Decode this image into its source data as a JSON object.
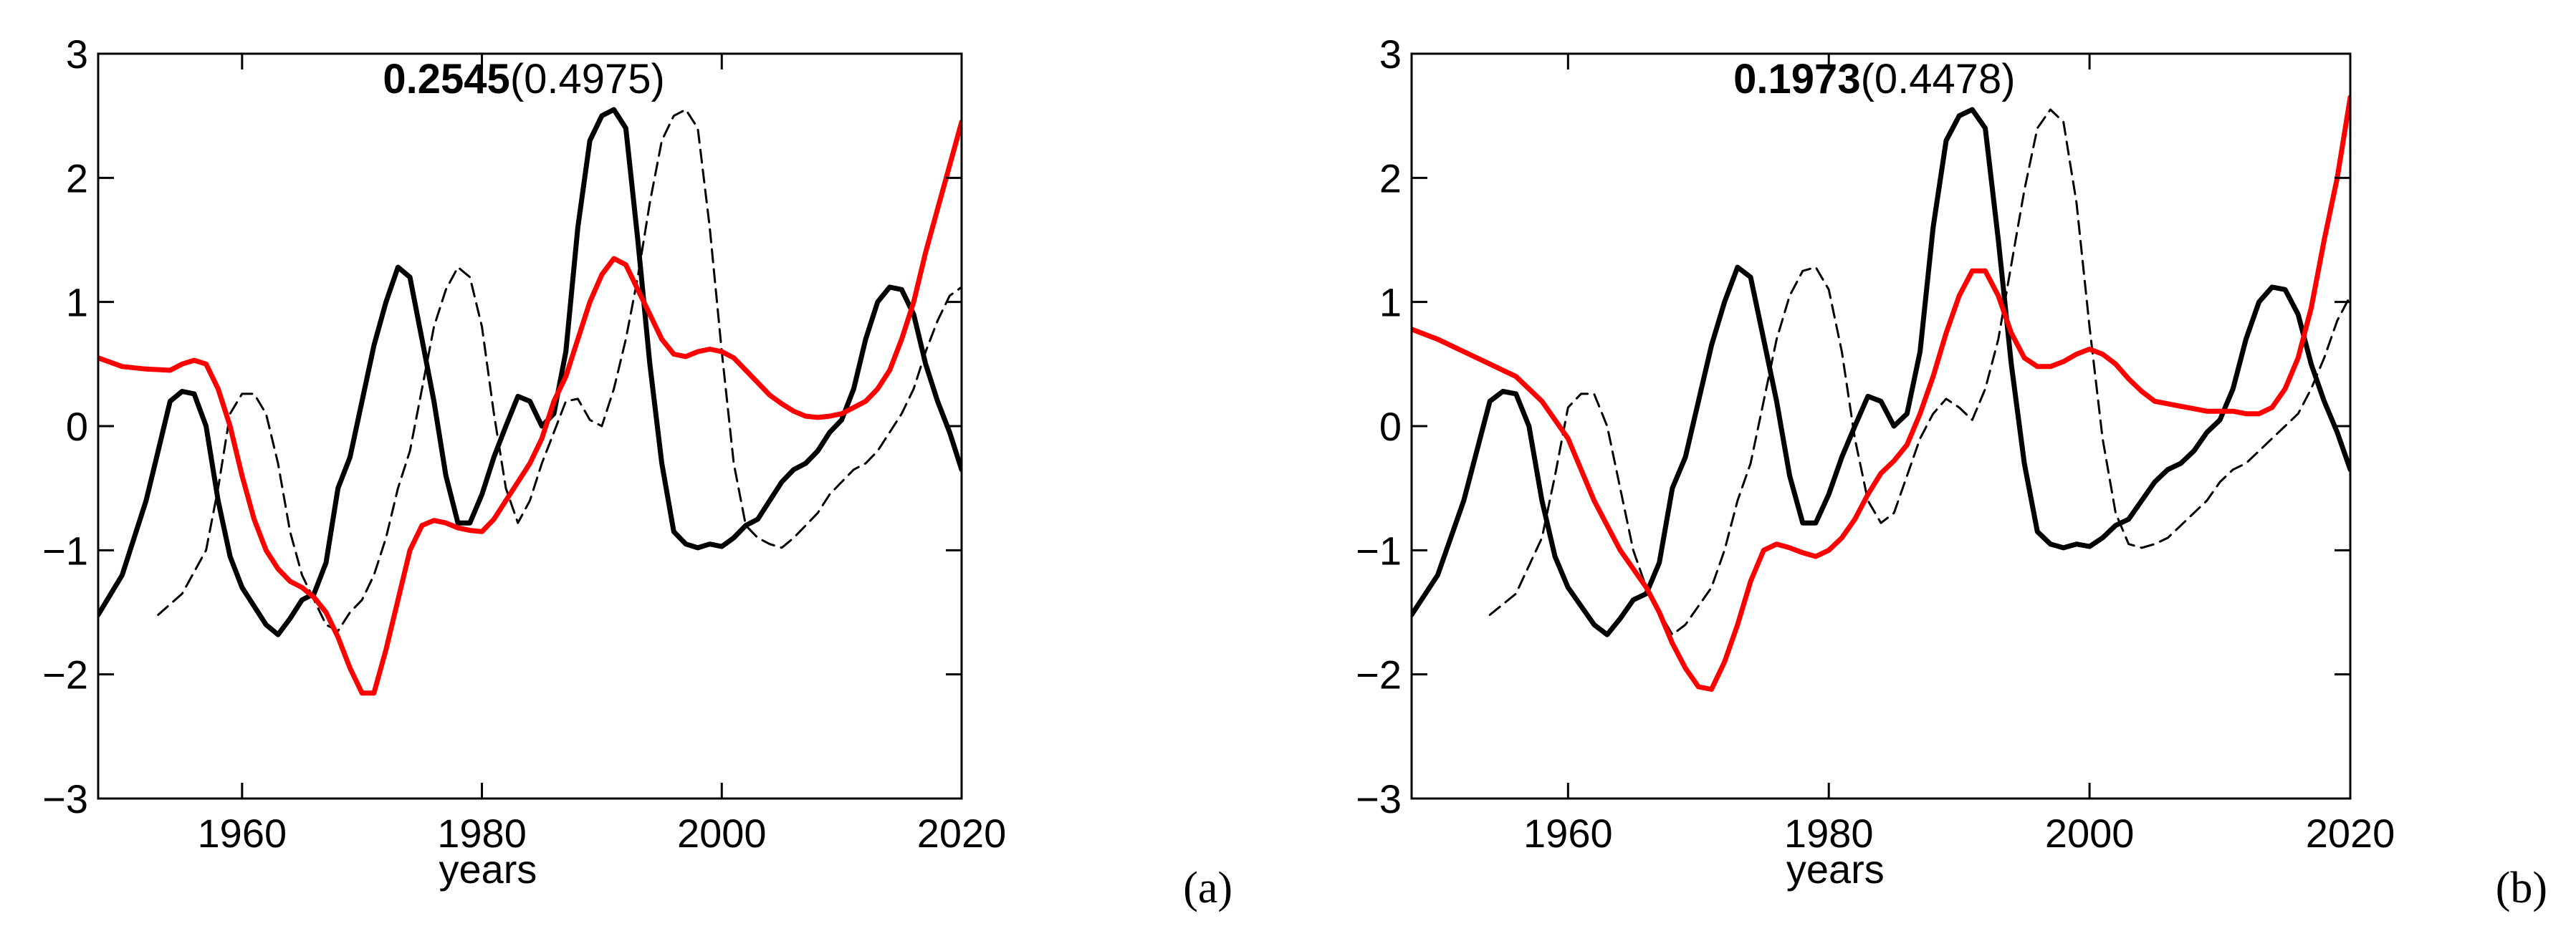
{
  "figure": {
    "panel_labels": [
      "(a)",
      "(b)"
    ]
  },
  "chart_data": [
    {
      "type": "line",
      "panel": "a",
      "title_bold": "0.2545",
      "title_normal": "(0.4975)",
      "xlabel": "years",
      "ylabel": "",
      "xlim": [
        1948,
        2020
      ],
      "ylim": [
        -3,
        3
      ],
      "xticks": [
        1960,
        1980,
        2000,
        2020
      ],
      "yticks": [
        -3,
        -2,
        -1,
        0,
        1,
        2,
        3
      ],
      "grid": false,
      "series": [
        {
          "name": "black-solid",
          "color": "#000000",
          "style": "solid",
          "x": [
            1948,
            1950,
            1952,
            1953,
            1954,
            1955,
            1956,
            1957,
            1958,
            1959,
            1960,
            1962,
            1963,
            1964,
            1965,
            1966,
            1967,
            1968,
            1969,
            1970,
            1971,
            1972,
            1973,
            1974,
            1975,
            1976,
            1977,
            1978,
            1979,
            1980,
            1981,
            1982,
            1983,
            1984,
            1985,
            1986,
            1987,
            1988,
            1989,
            1990,
            1991,
            1992,
            1993,
            1994,
            1995,
            1996,
            1997,
            1998,
            1999,
            2000,
            2001,
            2002,
            2003,
            2004,
            2005,
            2006,
            2007,
            2008,
            2009,
            2010,
            2011,
            2012,
            2013,
            2014,
            2015,
            2016,
            2017,
            2018,
            2019,
            2020
          ],
          "y": [
            -1.52,
            -1.2,
            -0.6,
            -0.2,
            0.2,
            0.28,
            0.26,
            0.0,
            -0.6,
            -1.05,
            -1.3,
            -1.6,
            -1.68,
            -1.55,
            -1.4,
            -1.35,
            -1.1,
            -0.5,
            -0.25,
            0.2,
            0.65,
            1.0,
            1.28,
            1.2,
            0.7,
            0.2,
            -0.4,
            -0.78,
            -0.78,
            -0.55,
            -0.25,
            0.0,
            0.24,
            0.2,
            0.0,
            0.1,
            0.6,
            1.6,
            2.3,
            2.5,
            2.55,
            2.4,
            1.5,
            0.5,
            -0.3,
            -0.85,
            -0.95,
            -0.98,
            -0.95,
            -0.97,
            -0.9,
            -0.8,
            -0.75,
            -0.6,
            -0.45,
            -0.35,
            -0.3,
            -0.2,
            -0.05,
            0.05,
            0.3,
            0.7,
            1.0,
            1.12,
            1.1,
            0.9,
            0.5,
            0.2,
            -0.05,
            -0.35
          ]
        },
        {
          "name": "black-dashed",
          "color": "#000000",
          "style": "dashed",
          "x": [
            1953,
            1955,
            1957,
            1958,
            1959,
            1960,
            1961,
            1962,
            1963,
            1964,
            1965,
            1966,
            1967,
            1968,
            1969,
            1970,
            1971,
            1972,
            1973,
            1974,
            1975,
            1976,
            1977,
            1978,
            1979,
            1980,
            1981,
            1982,
            1983,
            1984,
            1985,
            1986,
            1987,
            1988,
            1989,
            1990,
            1991,
            1992,
            1993,
            1994,
            1995,
            1996,
            1997,
            1998,
            1999,
            2000,
            2001,
            2002,
            2003,
            2004,
            2005,
            2006,
            2007,
            2008,
            2009,
            2010,
            2011,
            2012,
            2013,
            2014,
            2015,
            2016,
            2017,
            2018,
            2019,
            2020
          ],
          "y": [
            -1.52,
            -1.35,
            -1.0,
            -0.5,
            0.1,
            0.26,
            0.26,
            0.1,
            -0.3,
            -0.85,
            -1.2,
            -1.4,
            -1.6,
            -1.65,
            -1.5,
            -1.4,
            -1.2,
            -0.9,
            -0.5,
            -0.2,
            0.3,
            0.8,
            1.1,
            1.28,
            1.2,
            0.8,
            0.1,
            -0.5,
            -0.78,
            -0.6,
            -0.3,
            -0.05,
            0.2,
            0.22,
            0.05,
            0.0,
            0.3,
            0.7,
            1.2,
            1.8,
            2.3,
            2.5,
            2.55,
            2.4,
            1.6,
            0.6,
            -0.3,
            -0.8,
            -0.9,
            -0.95,
            -0.98,
            -0.9,
            -0.8,
            -0.7,
            -0.55,
            -0.45,
            -0.35,
            -0.3,
            -0.2,
            -0.05,
            0.1,
            0.3,
            0.6,
            0.85,
            1.05,
            1.12
          ]
        },
        {
          "name": "red",
          "color": "#ff0000",
          "style": "solid",
          "x": [
            1948,
            1950,
            1952,
            1954,
            1955,
            1956,
            1957,
            1958,
            1959,
            1960,
            1961,
            1962,
            1963,
            1964,
            1965,
            1966,
            1967,
            1968,
            1969,
            1970,
            1971,
            1972,
            1973,
            1974,
            1975,
            1976,
            1977,
            1978,
            1979,
            1980,
            1981,
            1982,
            1983,
            1984,
            1985,
            1986,
            1987,
            1988,
            1989,
            1990,
            1991,
            1992,
            1993,
            1994,
            1995,
            1996,
            1997,
            1998,
            1999,
            2000,
            2001,
            2002,
            2003,
            2004,
            2005,
            2006,
            2007,
            2008,
            2009,
            2010,
            2011,
            2012,
            2013,
            2014,
            2015,
            2016,
            2017,
            2018,
            2019,
            2020
          ],
          "y": [
            0.55,
            0.48,
            0.46,
            0.45,
            0.5,
            0.53,
            0.5,
            0.3,
            0.0,
            -0.4,
            -0.75,
            -1.0,
            -1.15,
            -1.25,
            -1.3,
            -1.38,
            -1.5,
            -1.7,
            -1.95,
            -2.15,
            -2.15,
            -1.8,
            -1.4,
            -1.0,
            -0.8,
            -0.76,
            -0.78,
            -0.82,
            -0.84,
            -0.85,
            -0.75,
            -0.6,
            -0.45,
            -0.3,
            -0.1,
            0.2,
            0.4,
            0.7,
            1.0,
            1.22,
            1.35,
            1.3,
            1.1,
            0.9,
            0.7,
            0.58,
            0.56,
            0.6,
            0.62,
            0.6,
            0.55,
            0.45,
            0.35,
            0.25,
            0.18,
            0.12,
            0.08,
            0.07,
            0.08,
            0.1,
            0.15,
            0.2,
            0.3,
            0.45,
            0.7,
            1.0,
            1.4,
            1.75,
            2.1,
            2.45
          ]
        }
      ]
    },
    {
      "type": "line",
      "panel": "b",
      "title_bold": "0.1973",
      "title_normal": "(0.4478)",
      "xlabel": "years",
      "ylabel": "",
      "xlim": [
        1948,
        2020
      ],
      "ylim": [
        -3,
        3
      ],
      "xticks": [
        1960,
        1980,
        2000,
        2020
      ],
      "yticks": [
        -3,
        -2,
        -1,
        0,
        1,
        2,
        3
      ],
      "grid": false,
      "series": [
        {
          "name": "black-solid",
          "color": "#000000",
          "style": "solid",
          "x": [
            1948,
            1950,
            1952,
            1953,
            1954,
            1955,
            1956,
            1957,
            1958,
            1959,
            1960,
            1962,
            1963,
            1964,
            1965,
            1966,
            1967,
            1968,
            1969,
            1970,
            1971,
            1972,
            1973,
            1974,
            1975,
            1976,
            1977,
            1978,
            1979,
            1980,
            1981,
            1982,
            1983,
            1984,
            1985,
            1986,
            1987,
            1988,
            1989,
            1990,
            1991,
            1992,
            1993,
            1994,
            1995,
            1996,
            1997,
            1998,
            1999,
            2000,
            2001,
            2002,
            2003,
            2004,
            2005,
            2006,
            2007,
            2008,
            2009,
            2010,
            2011,
            2012,
            2013,
            2014,
            2015,
            2016,
            2017,
            2018,
            2019,
            2020
          ],
          "y": [
            -1.52,
            -1.2,
            -0.6,
            -0.2,
            0.2,
            0.28,
            0.26,
            0.0,
            -0.6,
            -1.05,
            -1.3,
            -1.6,
            -1.68,
            -1.55,
            -1.4,
            -1.35,
            -1.1,
            -0.5,
            -0.25,
            0.2,
            0.65,
            1.0,
            1.28,
            1.2,
            0.7,
            0.2,
            -0.4,
            -0.78,
            -0.78,
            -0.55,
            -0.25,
            0.0,
            0.24,
            0.2,
            0.0,
            0.1,
            0.6,
            1.6,
            2.3,
            2.5,
            2.55,
            2.4,
            1.5,
            0.5,
            -0.3,
            -0.85,
            -0.95,
            -0.98,
            -0.95,
            -0.97,
            -0.9,
            -0.8,
            -0.75,
            -0.6,
            -0.45,
            -0.35,
            -0.3,
            -0.2,
            -0.05,
            0.05,
            0.3,
            0.7,
            1.0,
            1.12,
            1.1,
            0.9,
            0.5,
            0.2,
            -0.05,
            -0.35
          ]
        },
        {
          "name": "black-dashed",
          "color": "#000000",
          "style": "dashed",
          "x": [
            1954,
            1956,
            1958,
            1959,
            1960,
            1961,
            1962,
            1963,
            1964,
            1965,
            1966,
            1967,
            1968,
            1969,
            1970,
            1971,
            1972,
            1973,
            1974,
            1975,
            1976,
            1977,
            1978,
            1979,
            1980,
            1981,
            1982,
            1983,
            1984,
            1985,
            1986,
            1987,
            1988,
            1989,
            1990,
            1991,
            1992,
            1993,
            1994,
            1995,
            1996,
            1997,
            1998,
            1999,
            2000,
            2001,
            2002,
            2003,
            2004,
            2005,
            2006,
            2007,
            2008,
            2009,
            2010,
            2011,
            2012,
            2013,
            2014,
            2015,
            2016,
            2017,
            2018,
            2019,
            2020
          ],
          "y": [
            -1.52,
            -1.35,
            -0.9,
            -0.4,
            0.15,
            0.26,
            0.26,
            0.0,
            -0.5,
            -1.0,
            -1.3,
            -1.5,
            -1.68,
            -1.6,
            -1.45,
            -1.3,
            -1.0,
            -0.6,
            -0.3,
            0.2,
            0.7,
            1.05,
            1.25,
            1.28,
            1.1,
            0.6,
            -0.1,
            -0.6,
            -0.78,
            -0.7,
            -0.4,
            -0.1,
            0.1,
            0.22,
            0.15,
            0.05,
            0.3,
            0.7,
            1.3,
            1.9,
            2.4,
            2.55,
            2.45,
            1.8,
            0.8,
            -0.1,
            -0.7,
            -0.95,
            -0.98,
            -0.95,
            -0.9,
            -0.8,
            -0.7,
            -0.6,
            -0.45,
            -0.35,
            -0.3,
            -0.2,
            -0.1,
            0.0,
            0.1,
            0.3,
            0.55,
            0.85,
            1.05
          ]
        },
        {
          "name": "red",
          "color": "#ff0000",
          "style": "solid",
          "x": [
            1948,
            1950,
            1952,
            1954,
            1956,
            1958,
            1960,
            1961,
            1962,
            1963,
            1964,
            1965,
            1966,
            1967,
            1968,
            1969,
            1970,
            1971,
            1972,
            1973,
            1974,
            1975,
            1976,
            1977,
            1978,
            1979,
            1980,
            1981,
            1982,
            1983,
            1984,
            1985,
            1986,
            1987,
            1988,
            1989,
            1990,
            1991,
            1992,
            1993,
            1994,
            1995,
            1996,
            1997,
            1998,
            1999,
            2000,
            2001,
            2002,
            2003,
            2004,
            2005,
            2006,
            2007,
            2008,
            2009,
            2010,
            2011,
            2012,
            2013,
            2014,
            2015,
            2016,
            2017,
            2018,
            2019,
            2020
          ],
          "y": [
            0.78,
            0.7,
            0.6,
            0.5,
            0.4,
            0.2,
            -0.1,
            -0.35,
            -0.6,
            -0.8,
            -1.0,
            -1.15,
            -1.3,
            -1.5,
            -1.75,
            -1.95,
            -2.1,
            -2.12,
            -1.9,
            -1.6,
            -1.25,
            -1.0,
            -0.95,
            -0.98,
            -1.02,
            -1.05,
            -1.0,
            -0.9,
            -0.75,
            -0.55,
            -0.38,
            -0.28,
            -0.15,
            0.1,
            0.4,
            0.75,
            1.05,
            1.25,
            1.25,
            1.05,
            0.75,
            0.55,
            0.48,
            0.48,
            0.52,
            0.58,
            0.62,
            0.58,
            0.5,
            0.38,
            0.28,
            0.2,
            0.18,
            0.16,
            0.14,
            0.12,
            0.12,
            0.12,
            0.1,
            0.1,
            0.15,
            0.3,
            0.55,
            0.95,
            1.5,
            2.0,
            2.65
          ]
        }
      ]
    }
  ]
}
